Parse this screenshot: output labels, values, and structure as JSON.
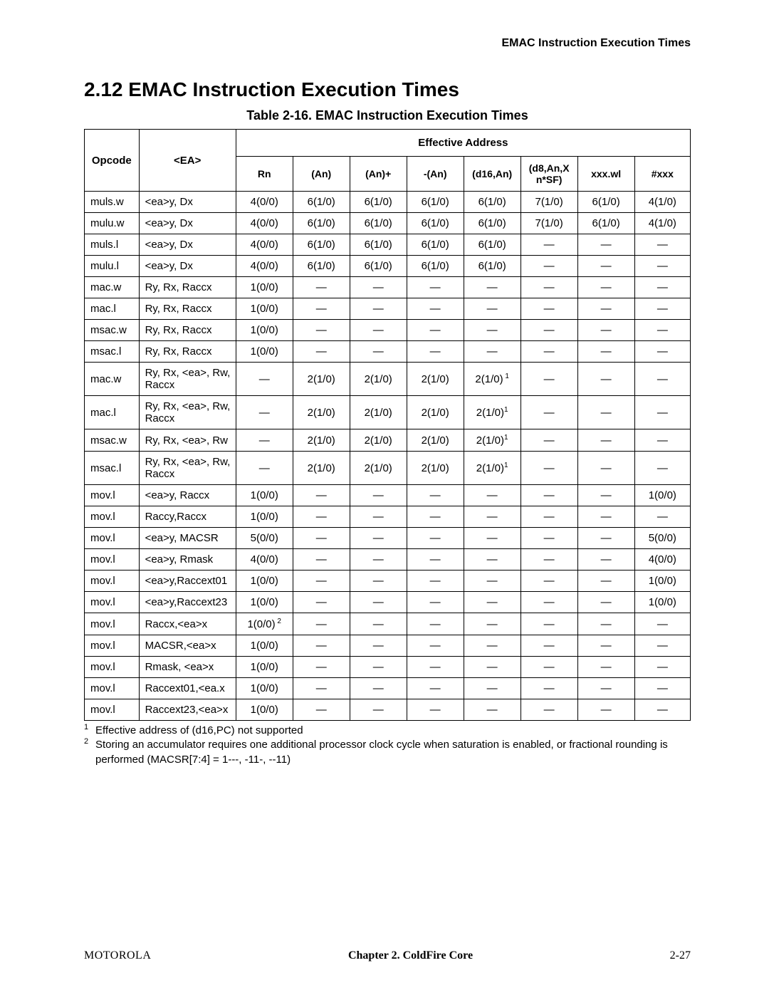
{
  "header": {
    "running_head": "EMAC Instruction Execution Times"
  },
  "section": {
    "title": "2.12  EMAC Instruction Execution Times"
  },
  "table": {
    "caption": "Table 2-16. EMAC Instruction Execution Times",
    "columns": {
      "opcode": "Opcode",
      "ea": "<EA>",
      "eff_addr": "Effective Address",
      "sub": [
        "Rn",
        "(An)",
        "(An)+",
        "-(An)",
        "(d16,An)",
        "(d8,An,X n*SF)",
        "xxx.wl",
        "#xxx"
      ]
    },
    "rows": [
      {
        "op": "muls.w",
        "ea": "<ea>y, Dx",
        "v": [
          "4(0/0)",
          "6(1/0)",
          "6(1/0)",
          "6(1/0)",
          "6(1/0)",
          "7(1/0)",
          "6(1/0)",
          "4(1/0)"
        ]
      },
      {
        "op": "mulu.w",
        "ea": "<ea>y, Dx",
        "v": [
          "4(0/0)",
          "6(1/0)",
          "6(1/0)",
          "6(1/0)",
          "6(1/0)",
          "7(1/0)",
          "6(1/0)",
          "4(1/0)"
        ]
      },
      {
        "op": "muls.l",
        "ea": "<ea>y, Dx",
        "v": [
          "4(0/0)",
          "6(1/0)",
          "6(1/0)",
          "6(1/0)",
          "6(1/0)",
          "—",
          "—",
          "—"
        ]
      },
      {
        "op": "mulu.l",
        "ea": "<ea>y, Dx",
        "v": [
          "4(0/0)",
          "6(1/0)",
          "6(1/0)",
          "6(1/0)",
          "6(1/0)",
          "—",
          "—",
          "—"
        ]
      },
      {
        "op": "mac.w",
        "ea": "Ry, Rx, Raccx",
        "v": [
          "1(0/0)",
          "—",
          "—",
          "—",
          "—",
          "—",
          "—",
          "—"
        ]
      },
      {
        "op": "mac.l",
        "ea": "Ry, Rx, Raccx",
        "v": [
          "1(0/0)",
          "—",
          "—",
          "—",
          "—",
          "—",
          "—",
          "—"
        ]
      },
      {
        "op": "msac.w",
        "ea": "Ry, Rx, Raccx",
        "v": [
          "1(0/0)",
          "—",
          "—",
          "—",
          "—",
          "—",
          "—",
          "—"
        ]
      },
      {
        "op": "msac.l",
        "ea": "Ry, Rx, Raccx",
        "v": [
          "1(0/0)",
          "—",
          "—",
          "—",
          "—",
          "—",
          "—",
          "—"
        ]
      },
      {
        "op": "mac.w",
        "ea": "Ry, Rx, <ea>, Rw, Raccx",
        "v": [
          "—",
          "2(1/0)",
          "2(1/0)",
          "2(1/0)",
          "2(1/0)",
          "—",
          "—",
          "—"
        ],
        "sup": {
          "4": " 1"
        }
      },
      {
        "op": "mac.l",
        "ea": "Ry, Rx, <ea>, Rw, Raccx",
        "v": [
          "—",
          "2(1/0)",
          "2(1/0)",
          "2(1/0)",
          "2(1/0)",
          "—",
          "—",
          "—"
        ],
        "sup": {
          "4": "1"
        }
      },
      {
        "op": "msac.w",
        "ea": "Ry, Rx, <ea>, Rw",
        "v": [
          "—",
          "2(1/0)",
          "2(1/0)",
          "2(1/0)",
          "2(1/0)",
          "—",
          "—",
          "—"
        ],
        "sup": {
          "4": "1"
        }
      },
      {
        "op": "msac.l",
        "ea": "Ry, Rx, <ea>, Rw, Raccx",
        "v": [
          "—",
          "2(1/0)",
          "2(1/0)",
          "2(1/0)",
          "2(1/0)",
          "—",
          "—",
          "—"
        ],
        "sup": {
          "4": "1"
        }
      },
      {
        "op": "mov.l",
        "ea": "<ea>y, Raccx",
        "v": [
          "1(0/0)",
          "—",
          "—",
          "—",
          "—",
          "—",
          "—",
          "1(0/0)"
        ]
      },
      {
        "op": "mov.l",
        "ea": "Raccy,Raccx",
        "v": [
          "1(0/0)",
          "—",
          "—",
          "—",
          "—",
          "—",
          "—",
          "—"
        ]
      },
      {
        "op": "mov.l",
        "ea": "<ea>y, MACSR",
        "v": [
          "5(0/0)",
          "—",
          "—",
          "—",
          "—",
          "—",
          "—",
          "5(0/0)"
        ]
      },
      {
        "op": "mov.l",
        "ea": "<ea>y, Rmask",
        "v": [
          "4(0/0)",
          "—",
          "—",
          "—",
          "—",
          "—",
          "—",
          "4(0/0)"
        ]
      },
      {
        "op": "mov.l",
        "ea": "<ea>y,Raccext01",
        "v": [
          "1(0/0)",
          "—",
          "—",
          "—",
          "—",
          "—",
          "—",
          "1(0/0)"
        ]
      },
      {
        "op": "mov.l",
        "ea": "<ea>y,Raccext23",
        "v": [
          "1(0/0)",
          "—",
          "—",
          "—",
          "—",
          "—",
          "—",
          "1(0/0)"
        ]
      },
      {
        "op": "mov.l",
        "ea": "Raccx,<ea>x",
        "v": [
          "1(0/0)",
          "—",
          "—",
          "—",
          "—",
          "—",
          "—",
          "—"
        ],
        "sup": {
          "0": " 2"
        }
      },
      {
        "op": "mov.l",
        "ea": "MACSR,<ea>x",
        "v": [
          "1(0/0)",
          "—",
          "—",
          "—",
          "—",
          "—",
          "—",
          "—"
        ]
      },
      {
        "op": "mov.l",
        "ea": "Rmask, <ea>x",
        "v": [
          "1(0/0)",
          "—",
          "—",
          "—",
          "—",
          "—",
          "—",
          "—"
        ]
      },
      {
        "op": "mov.l",
        "ea": "Raccext01,<ea.x",
        "v": [
          "1(0/0)",
          "—",
          "—",
          "—",
          "—",
          "—",
          "—",
          "—"
        ]
      },
      {
        "op": "mov.l",
        "ea": "Raccext23,<ea>x",
        "v": [
          "1(0/0)",
          "—",
          "—",
          "—",
          "—",
          "—",
          "—",
          "—"
        ]
      }
    ]
  },
  "footnotes": [
    {
      "n": "1",
      "text": "Effective address of (d16,PC) not supported"
    },
    {
      "n": "2",
      "text": "Storing an accumulator requires one additional processor clock cycle when saturation is enabled, or fractional rounding is performed (MACSR[7:4] = 1---, -11-, --11)"
    }
  ],
  "footer": {
    "left": "MOTOROLA",
    "center": "Chapter 2. ColdFire Core",
    "right": "2-27"
  }
}
